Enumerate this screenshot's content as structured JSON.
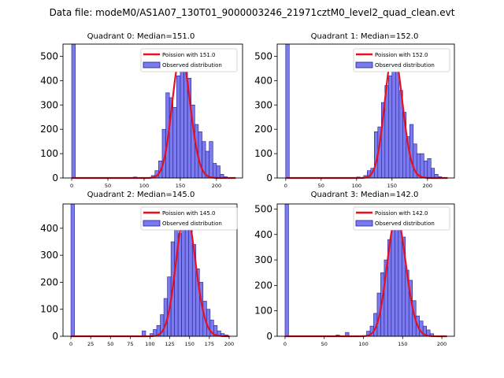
{
  "figure_title": "Data file: modeM0/AS1A07_130T01_9000003246_21971cztM0_level2_quad_clean.evt",
  "colors": {
    "bar_fill": "#7b7bef",
    "bar_edge": "#1f1f8f",
    "fit_line": "#e8101c"
  },
  "chart_data": [
    {
      "type": "bar",
      "title": "Quadrant 0: Median=151.0",
      "legend": {
        "fit": "Poission with 151.0",
        "observed": "Observed distribution",
        "placement": "top-right"
      },
      "xlim": [
        -12,
        236
      ],
      "ylim": [
        0,
        550
      ],
      "xticks": [
        0,
        50,
        100,
        150,
        200
      ],
      "yticks": [
        0,
        100,
        200,
        300,
        400,
        500
      ],
      "bin_width": 5,
      "bars": [
        {
          "x": 0,
          "value": 550
        },
        {
          "x": 85,
          "value": 4
        },
        {
          "x": 110,
          "value": 10
        },
        {
          "x": 115,
          "value": 30
        },
        {
          "x": 120,
          "value": 70
        },
        {
          "x": 125,
          "value": 200
        },
        {
          "x": 130,
          "value": 350
        },
        {
          "x": 135,
          "value": 330
        },
        {
          "x": 140,
          "value": 290
        },
        {
          "x": 145,
          "value": 420
        },
        {
          "x": 150,
          "value": 470
        },
        {
          "x": 155,
          "value": 510
        },
        {
          "x": 160,
          "value": 410
        },
        {
          "x": 165,
          "value": 300
        },
        {
          "x": 170,
          "value": 220
        },
        {
          "x": 175,
          "value": 190
        },
        {
          "x": 180,
          "value": 150
        },
        {
          "x": 185,
          "value": 110
        },
        {
          "x": 190,
          "value": 150
        },
        {
          "x": 195,
          "value": 60
        },
        {
          "x": 200,
          "value": 50
        },
        {
          "x": 205,
          "value": 15
        },
        {
          "x": 210,
          "value": 5
        }
      ],
      "fit": {
        "mu": 151.0,
        "x_start": 0,
        "x_end": 226
      }
    },
    {
      "type": "bar",
      "title": "Quadrant 1: Median=152.0",
      "legend": {
        "fit": "Poission with 152.0",
        "observed": "Observed distribution",
        "placement": "top-right"
      },
      "xlim": [
        -12,
        238
      ],
      "ylim": [
        0,
        550
      ],
      "xticks": [
        0,
        50,
        100,
        150,
        200
      ],
      "yticks": [
        0,
        100,
        200,
        300,
        400,
        500
      ],
      "bin_width": 5,
      "bars": [
        {
          "x": 0,
          "value": 550
        },
        {
          "x": 100,
          "value": 4
        },
        {
          "x": 110,
          "value": 10
        },
        {
          "x": 115,
          "value": 30
        },
        {
          "x": 120,
          "value": 40
        },
        {
          "x": 125,
          "value": 190
        },
        {
          "x": 130,
          "value": 210
        },
        {
          "x": 135,
          "value": 310
        },
        {
          "x": 140,
          "value": 380
        },
        {
          "x": 145,
          "value": 420
        },
        {
          "x": 150,
          "value": 470
        },
        {
          "x": 155,
          "value": 520
        },
        {
          "x": 160,
          "value": 360
        },
        {
          "x": 165,
          "value": 270
        },
        {
          "x": 170,
          "value": 170
        },
        {
          "x": 175,
          "value": 220
        },
        {
          "x": 180,
          "value": 140
        },
        {
          "x": 185,
          "value": 100
        },
        {
          "x": 190,
          "value": 100
        },
        {
          "x": 195,
          "value": 70
        },
        {
          "x": 200,
          "value": 80
        },
        {
          "x": 205,
          "value": 40
        },
        {
          "x": 210,
          "value": 15
        },
        {
          "x": 215,
          "value": 5
        }
      ],
      "fit": {
        "mu": 152.0,
        "x_start": 0,
        "x_end": 228
      }
    },
    {
      "type": "bar",
      "title": "Quadrant 2: Median=145.0",
      "legend": {
        "fit": "Poission with 145.0",
        "observed": "Observed distribution",
        "placement": "top-right"
      },
      "xlim": [
        -10,
        210
      ],
      "ylim": [
        0,
        490
      ],
      "xticks": [
        0,
        25,
        50,
        75,
        100,
        125,
        150,
        175,
        200
      ],
      "yticks": [
        0,
        100,
        200,
        300,
        400
      ],
      "bin_width": 4.5,
      "bars": [
        {
          "x": 0,
          "value": 490
        },
        {
          "x": 90,
          "value": 20
        },
        {
          "x": 100,
          "value": 10
        },
        {
          "x": 104,
          "value": 25
        },
        {
          "x": 108.5,
          "value": 40
        },
        {
          "x": 113,
          "value": 80
        },
        {
          "x": 117.5,
          "value": 140
        },
        {
          "x": 122,
          "value": 220
        },
        {
          "x": 126.5,
          "value": 350
        },
        {
          "x": 131,
          "value": 400
        },
        {
          "x": 135.5,
          "value": 380
        },
        {
          "x": 140,
          "value": 440
        },
        {
          "x": 144.5,
          "value": 465
        },
        {
          "x": 149,
          "value": 410
        },
        {
          "x": 153.5,
          "value": 340
        },
        {
          "x": 158,
          "value": 250
        },
        {
          "x": 162.5,
          "value": 200
        },
        {
          "x": 167,
          "value": 130
        },
        {
          "x": 171.5,
          "value": 100
        },
        {
          "x": 176,
          "value": 60
        },
        {
          "x": 180.5,
          "value": 40
        },
        {
          "x": 185,
          "value": 20
        },
        {
          "x": 189.5,
          "value": 10
        },
        {
          "x": 194,
          "value": 5
        }
      ],
      "fit": {
        "mu": 145.0,
        "x_start": 0,
        "x_end": 200
      }
    },
    {
      "type": "bar",
      "title": "Quadrant 3: Median=142.0",
      "legend": {
        "fit": "Poission with 142.0",
        "observed": "Observed distribution",
        "placement": "top-right"
      },
      "xlim": [
        -10,
        216
      ],
      "ylim": [
        0,
        520
      ],
      "xticks": [
        0,
        50,
        100,
        150,
        200
      ],
      "yticks": [
        0,
        100,
        200,
        300,
        400,
        500
      ],
      "bin_width": 4.5,
      "bars": [
        {
          "x": 0,
          "value": 520
        },
        {
          "x": 65,
          "value": 5
        },
        {
          "x": 77,
          "value": 15
        },
        {
          "x": 104,
          "value": 20
        },
        {
          "x": 108.5,
          "value": 40
        },
        {
          "x": 113,
          "value": 90
        },
        {
          "x": 117.5,
          "value": 170
        },
        {
          "x": 122,
          "value": 250
        },
        {
          "x": 126.5,
          "value": 300
        },
        {
          "x": 131,
          "value": 380
        },
        {
          "x": 135.5,
          "value": 470
        },
        {
          "x": 140,
          "value": 450
        },
        {
          "x": 144.5,
          "value": 420
        },
        {
          "x": 149,
          "value": 390
        },
        {
          "x": 153.5,
          "value": 260
        },
        {
          "x": 158,
          "value": 220
        },
        {
          "x": 162.5,
          "value": 140
        },
        {
          "x": 167,
          "value": 80
        },
        {
          "x": 171.5,
          "value": 60
        },
        {
          "x": 176,
          "value": 40
        },
        {
          "x": 180.5,
          "value": 25
        },
        {
          "x": 185,
          "value": 10
        }
      ],
      "fit": {
        "mu": 142.0,
        "x_start": 0,
        "x_end": 206
      }
    }
  ]
}
